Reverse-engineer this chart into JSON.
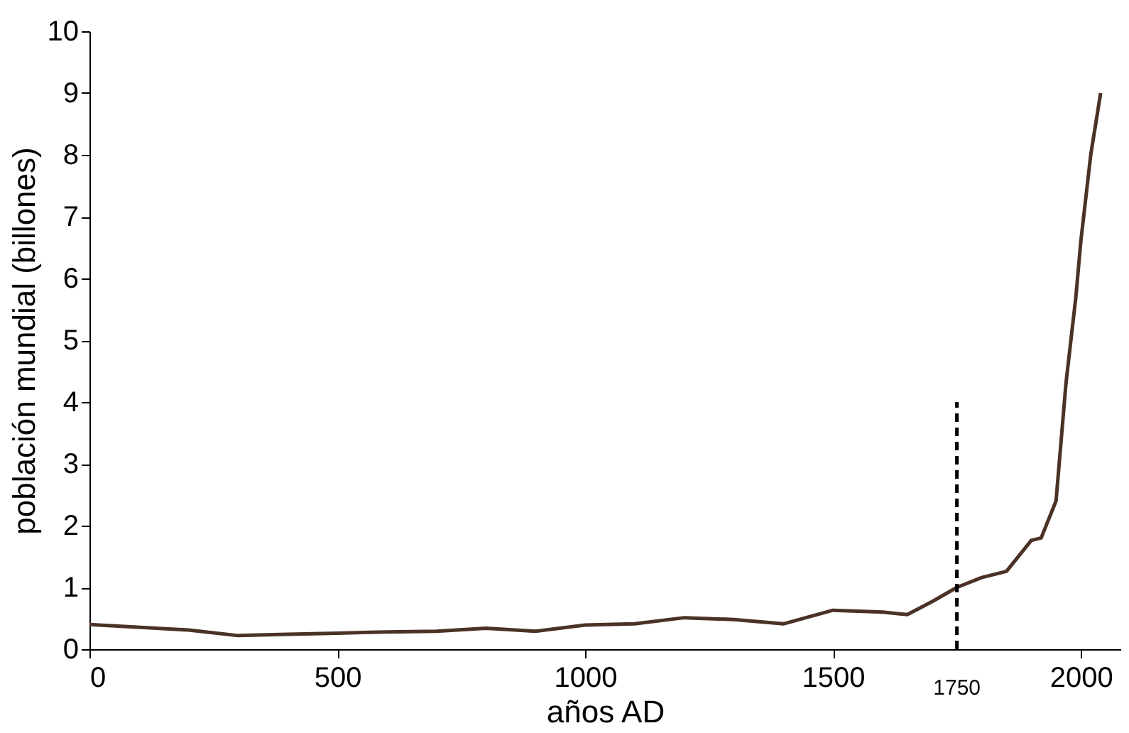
{
  "chart_data": {
    "type": "line",
    "xlabel": "años AD",
    "ylabel": "población mundial (billones)",
    "xlim": [
      0,
      2080
    ],
    "xticks": [
      0,
      500,
      1000,
      1500,
      2000
    ],
    "ylim": [
      0,
      10
    ],
    "yticks": [
      0,
      1,
      2,
      3,
      4,
      5,
      6,
      7,
      8,
      9,
      10
    ],
    "grid": false,
    "series": [
      {
        "color": "#4b3226",
        "x": [
          0,
          200,
          300,
          400,
          500,
          600,
          700,
          800,
          900,
          1000,
          1100,
          1200,
          1300,
          1400,
          1500,
          1600,
          1650,
          1700,
          1750,
          1800,
          1850,
          1900,
          1920,
          1950,
          1970,
          1990,
          2000,
          2020,
          2040
        ],
        "values": [
          0.4,
          0.31,
          0.22,
          0.24,
          0.26,
          0.28,
          0.29,
          0.34,
          0.29,
          0.39,
          0.41,
          0.51,
          0.48,
          0.41,
          0.63,
          0.6,
          0.56,
          0.77,
          1.0,
          1.16,
          1.26,
          1.76,
          1.8,
          2.4,
          4.3,
          5.7,
          6.6,
          8.0,
          9.0
        ]
      },
      {
        "type": "line",
        "line_style": "dashed",
        "color": "#000000",
        "x": [
          1750,
          1750
        ],
        "values": [
          0,
          4
        ]
      }
    ],
    "annotations": [
      {
        "text": "1750",
        "x": 1750,
        "y": 0
      }
    ]
  }
}
